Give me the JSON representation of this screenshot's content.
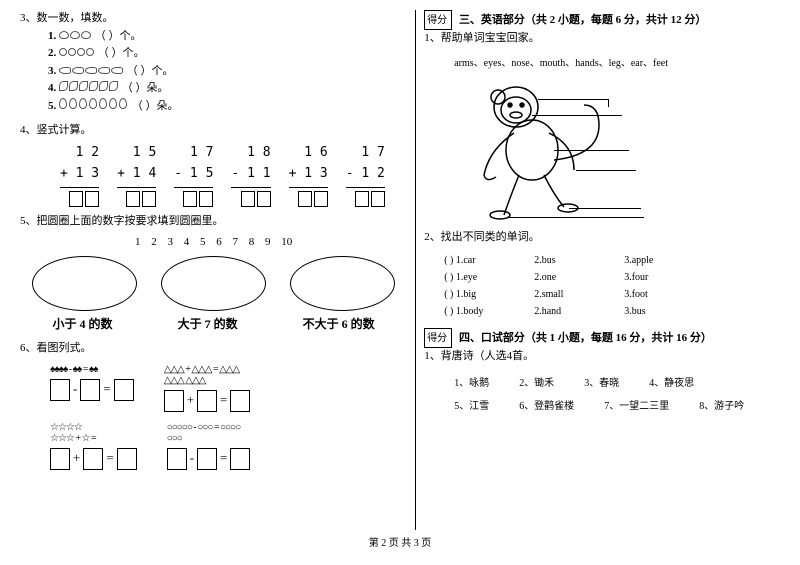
{
  "left": {
    "q3": {
      "title": "3、数一数，填数。",
      "lines": [
        {
          "n": "1.",
          "count": 3,
          "suffix": "（    ）个。",
          "shape": "mango"
        },
        {
          "n": "2.",
          "count": 4,
          "suffix": "（    ）个。",
          "shape": "ball"
        },
        {
          "n": "3.",
          "count": 5,
          "suffix": "（    ）个。",
          "shape": "fish"
        },
        {
          "n": "4.",
          "count": 6,
          "suffix": "（    ）朵。",
          "shape": "leaf"
        },
        {
          "n": "5.",
          "count": 7,
          "suffix": "（    ）朵。",
          "shape": "ear"
        }
      ]
    },
    "q4": {
      "title": "4、竖式计算。",
      "cols": [
        {
          "top": "1 2",
          "bot": "+ 1 3"
        },
        {
          "top": "1 5",
          "bot": "+ 1 4"
        },
        {
          "top": "1 7",
          "bot": "- 1 5"
        },
        {
          "top": "1 8",
          "bot": "- 1 1"
        },
        {
          "top": "1 6",
          "bot": "+ 1 3"
        },
        {
          "top": "1 7",
          "bot": "- 1 2"
        }
      ]
    },
    "q5": {
      "title": "5、把圆圈上面的数字按要求填到圆圈里。",
      "numbers": "1  2  3  4  5  6  7  8  9  10",
      "labels": [
        "小于 4 的数",
        "大于 7 的数",
        "不大于 6 的数"
      ]
    },
    "q6": {
      "title": "6、看图列式。",
      "row1": [
        {
          "pic": "♠♠♠♠ - ♠♠ = ♠♠",
          "ops": [
            "-",
            "="
          ]
        },
        {
          "pic": "△△△ + △△△ = △△△\n           △△△   △△△",
          "ops": [
            "+",
            "="
          ]
        }
      ],
      "row2": [
        {
          "pic": "☆☆☆☆\n☆☆☆ + ☆ =",
          "ops": [
            "+",
            "="
          ]
        },
        {
          "pic": "○○○○○ - ○○○ = ○○○○\n                    ○○○",
          "ops": [
            "-",
            "="
          ]
        }
      ]
    }
  },
  "right": {
    "score_label": "得分",
    "section3": {
      "title": "三、英语部分（共 2 小题，每题 6 分，共计 12 分）",
      "q1": "1、帮助单词宝宝回家。",
      "words": "arms、eyes、nose、mouth、hands、leg、ear、feet",
      "q2": {
        "title": "2、找出不同类的单词。",
        "rows": [
          [
            "(    ) 1.car",
            "2.bus",
            "3.apple"
          ],
          [
            "(    ) 1.eye",
            "2.one",
            "3.four"
          ],
          [
            "(    ) 1.big",
            "2.small",
            "3.foot"
          ],
          [
            "(    ) 1.body",
            "2.hand",
            "3.bus"
          ]
        ]
      }
    },
    "section4": {
      "title": "四、口试部分（共 1 小题，每题 16 分，共计 16 分）",
      "q1": "1、背唐诗（人选4首。",
      "poems_r1": [
        "1、咏鹅",
        "2、锄禾",
        "3、春晓",
        "4、静夜思"
      ],
      "poems_r2": [
        "5、江雪",
        "6、登鹳雀楼",
        "7、一望二三里",
        "8、游子吟"
      ]
    }
  },
  "footer": "第 2 页 共 3 页",
  "colors": {
    "text": "#000000",
    "bg": "#ffffff",
    "border": "#000000"
  }
}
